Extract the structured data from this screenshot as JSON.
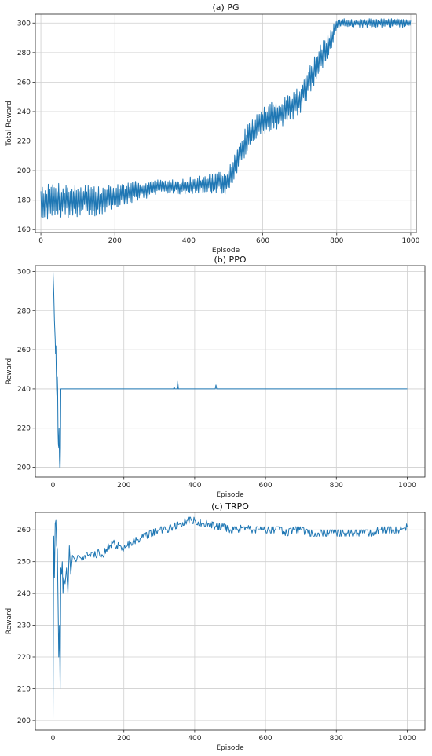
{
  "chart_data": [
    {
      "id": "pg",
      "type": "line",
      "title": "(a)  PG",
      "xlabel": "Episode",
      "ylabel": "Total Reward",
      "xlim": [
        -15,
        1015
      ],
      "ylim": [
        158,
        306
      ],
      "xticks": [
        0,
        200,
        400,
        600,
        800,
        1000
      ],
      "yticks": [
        160,
        180,
        200,
        220,
        240,
        260,
        280,
        300
      ],
      "grid": true,
      "color": "#1f77b4",
      "series": [
        {
          "x": [
            0,
            20,
            40,
            60,
            80,
            100,
            120,
            140,
            160,
            180,
            200,
            220,
            240,
            260,
            280,
            300,
            320,
            340,
            360,
            380,
            400,
            420,
            440,
            460,
            480,
            500,
            520,
            540,
            560,
            580,
            600,
            620,
            640,
            660,
            680,
            700,
            720,
            740,
            760,
            780,
            800,
            820,
            840,
            860,
            880,
            900,
            920,
            940,
            960,
            980,
            1000
          ],
          "y": [
            180,
            179,
            181,
            180,
            179,
            180,
            181,
            180,
            179,
            181,
            182,
            184,
            185,
            186,
            187,
            188,
            189,
            189,
            189,
            189,
            190,
            190,
            191,
            191,
            192,
            191,
            200,
            213,
            222,
            228,
            233,
            236,
            238,
            241,
            244,
            248,
            258,
            268,
            277,
            285,
            299,
            300,
            300,
            300,
            300,
            300,
            300,
            300,
            300,
            300,
            300
          ],
          "spread": [
            12,
            12,
            12,
            12,
            12,
            11,
            11,
            11,
            10,
            10,
            9,
            8,
            7,
            7,
            6,
            6,
            5,
            5,
            5,
            5,
            6,
            6,
            6,
            7,
            7,
            8,
            9,
            10,
            10,
            10,
            10,
            10,
            10,
            10,
            10,
            10,
            10,
            10,
            10,
            10,
            4,
            3,
            3,
            3,
            3,
            3,
            3,
            3,
            3,
            3,
            3
          ]
        }
      ]
    },
    {
      "id": "ppo",
      "type": "line",
      "title": "(b)  PPO",
      "xlabel": "Episode",
      "ylabel": "Reward",
      "xlim": [
        -50,
        1050
      ],
      "ylim": [
        195,
        303
      ],
      "xticks": [
        0,
        200,
        400,
        600,
        800,
        1000
      ],
      "yticks": [
        200,
        220,
        240,
        260,
        280,
        300
      ],
      "grid": true,
      "color": "#1f77b4",
      "series": [
        {
          "x": [
            0,
            2,
            4,
            5,
            6,
            7,
            8,
            9,
            10,
            11,
            12,
            13,
            14,
            15,
            16,
            17,
            18,
            19,
            20,
            21,
            22,
            24,
            340,
            342,
            344,
            346,
            350,
            352,
            354,
            356,
            458,
            460,
            462,
            1000
          ],
          "y": [
            300,
            290,
            275,
            270,
            265,
            258,
            262,
            250,
            240,
            236,
            246,
            240,
            218,
            212,
            210,
            220,
            205,
            200,
            200,
            210,
            240,
            240,
            240,
            241,
            240,
            240,
            240,
            244,
            240,
            240,
            240,
            242,
            240,
            240
          ]
        }
      ]
    },
    {
      "id": "trpo",
      "type": "line",
      "title": "(c)  TRPO",
      "xlabel": "Episode",
      "ylabel": "Reward",
      "xlim": [
        -50,
        1050
      ],
      "ylim": [
        197,
        265.5
      ],
      "xticks": [
        0,
        200,
        400,
        600,
        800,
        1000
      ],
      "yticks": [
        200,
        210,
        220,
        230,
        240,
        250,
        260
      ],
      "grid": true,
      "color": "#1f77b4",
      "series": [
        {
          "x": [
            0,
            2,
            4,
            6,
            8,
            10,
            12,
            14,
            16,
            18,
            20,
            22,
            24,
            26,
            28,
            30,
            34,
            38,
            42,
            46,
            50,
            55,
            60,
            65,
            70,
            80,
            90,
            100,
            110,
            120,
            130,
            140,
            150,
            160,
            170,
            180,
            190,
            200,
            220,
            240,
            260,
            280,
            300,
            320,
            340,
            360,
            380,
            400,
            420,
            440,
            460,
            480,
            500,
            520,
            540,
            560,
            580,
            600,
            620,
            640,
            660,
            680,
            700,
            720,
            740,
            760,
            780,
            800,
            820,
            840,
            860,
            880,
            900,
            920,
            940,
            960,
            980,
            1000
          ],
          "y": [
            200,
            258,
            245,
            262,
            263,
            255,
            254,
            238,
            220,
            230,
            210,
            248,
            246,
            250,
            240,
            245,
            243,
            248,
            240,
            255,
            246,
            252,
            251,
            250,
            252,
            251,
            252,
            252,
            253,
            252,
            253,
            252,
            254,
            255,
            256,
            255,
            255,
            254,
            256,
            257,
            258,
            259,
            260,
            260,
            261,
            262,
            263,
            263,
            262,
            262,
            261,
            261,
            260,
            260,
            261,
            260,
            260,
            260,
            260,
            260,
            259,
            260,
            260,
            259,
            259,
            259,
            259,
            259,
            259,
            259,
            259,
            259,
            259,
            260,
            260,
            260,
            260,
            261
          ],
          "jitter": 1
        }
      ]
    }
  ]
}
